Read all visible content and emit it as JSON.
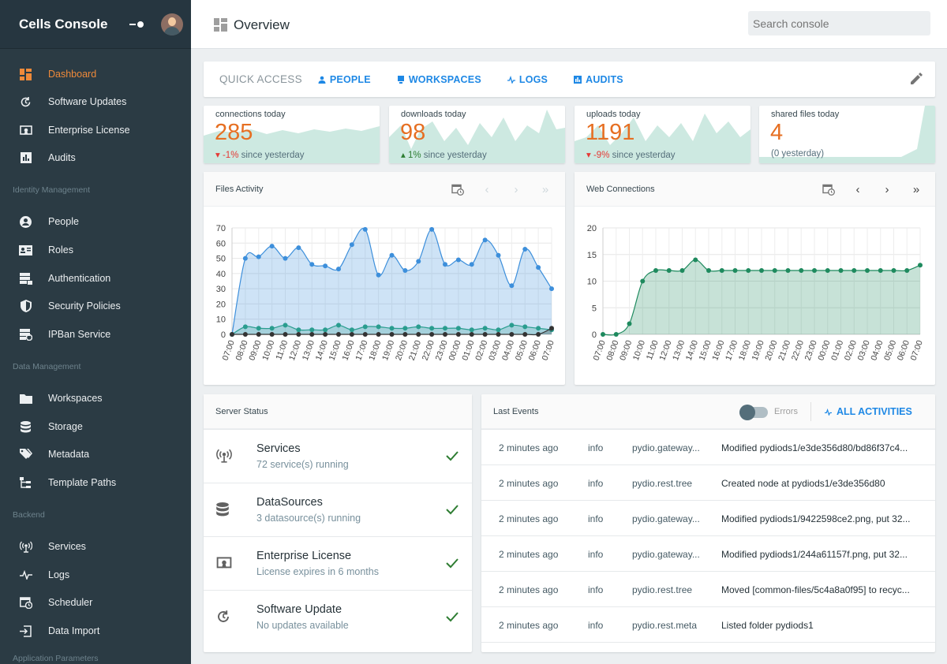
{
  "app": {
    "title": "Cells Console"
  },
  "sidebar": {
    "items": [
      {
        "label": "Dashboard",
        "icon": "dashboard-icon"
      },
      {
        "label": "Software Updates",
        "icon": "update-icon"
      },
      {
        "label": "Enterprise License",
        "icon": "license-icon"
      },
      {
        "label": "Audits",
        "icon": "chart-icon"
      },
      {
        "label": "People",
        "icon": "person-icon"
      },
      {
        "label": "Roles",
        "icon": "id-card-icon"
      },
      {
        "label": "Authentication",
        "icon": "server-lock-icon"
      },
      {
        "label": "Security Policies",
        "icon": "shield-icon"
      },
      {
        "label": "IPBan Service",
        "icon": "server-block-icon"
      },
      {
        "label": "Workspaces",
        "icon": "folder-icon"
      },
      {
        "label": "Storage",
        "icon": "database-icon"
      },
      {
        "label": "Metadata",
        "icon": "tags-icon"
      },
      {
        "label": "Template Paths",
        "icon": "file-tree-icon"
      },
      {
        "label": "Services",
        "icon": "antenna-icon"
      },
      {
        "label": "Logs",
        "icon": "pulse-icon"
      },
      {
        "label": "Scheduler",
        "icon": "calendar-clock-icon"
      },
      {
        "label": "Data Import",
        "icon": "import-icon"
      }
    ],
    "sections": [
      "Identity Management",
      "Data Management",
      "Backend",
      "Application Parameters"
    ]
  },
  "topbar": {
    "title": "Overview",
    "search_placeholder": "Search console"
  },
  "quick_access": {
    "label": "QUICK ACCESS",
    "links": [
      "PEOPLE",
      "WORKSPACES",
      "LOGS",
      "AUDITS"
    ]
  },
  "stats": [
    {
      "label": "connections today",
      "value": "285",
      "delta": "-1%",
      "delta_dir": "down",
      "suffix": "since yesterday"
    },
    {
      "label": "downloads today",
      "value": "98",
      "delta": "1%",
      "delta_dir": "up",
      "suffix": "since yesterday"
    },
    {
      "label": "uploads today",
      "value": "1191",
      "delta": "-9%",
      "delta_dir": "down",
      "suffix": "since yesterday"
    },
    {
      "label": "shared files today",
      "value": "4",
      "delta": "",
      "delta_dir": "none",
      "suffix": "(0 yesterday)"
    }
  ],
  "files_activity": {
    "title": "Files Activity"
  },
  "web_connections": {
    "title": "Web Connections"
  },
  "chart_data": [
    {
      "type": "area",
      "title": "Files Activity",
      "x": [
        "07:00",
        "08:00",
        "09:00",
        "10:00",
        "11:00",
        "12:00",
        "13:00",
        "14:00",
        "15:00",
        "16:00",
        "17:00",
        "18:00",
        "19:00",
        "20:00",
        "21:00",
        "22:00",
        "23:00",
        "00:00",
        "01:00",
        "02:00",
        "03:00",
        "04:00",
        "05:00",
        "06:00",
        "07:00"
      ],
      "ylim": [
        0,
        70
      ],
      "yticks": [
        0,
        10,
        20,
        30,
        40,
        50,
        60,
        70
      ],
      "grid": true,
      "series": [
        {
          "values": [
            0,
            50,
            51,
            58,
            50,
            57,
            46,
            45,
            43,
            59,
            69,
            39,
            52,
            42,
            48,
            69,
            46,
            49,
            46,
            62,
            52,
            32,
            56,
            44,
            30
          ],
          "color": "#3d8fdb"
        },
        {
          "values": [
            0,
            5,
            4,
            4,
            6,
            3,
            3,
            3,
            6,
            3,
            5,
            5,
            4,
            4,
            5,
            4,
            4,
            4,
            3,
            4,
            3,
            6,
            5,
            4,
            3
          ],
          "color": "#2a9d8f"
        },
        {
          "values": [
            0,
            0,
            0,
            0,
            0,
            0,
            0,
            0,
            0,
            0,
            0,
            0,
            0,
            0,
            0,
            0,
            0,
            0,
            0,
            0,
            0,
            0,
            0,
            0,
            4
          ],
          "color": "#333333"
        }
      ]
    },
    {
      "type": "area",
      "title": "Web Connections",
      "x": [
        "07:00",
        "08:00",
        "09:00",
        "10:00",
        "11:00",
        "12:00",
        "13:00",
        "14:00",
        "15:00",
        "16:00",
        "17:00",
        "18:00",
        "19:00",
        "20:00",
        "21:00",
        "22:00",
        "23:00",
        "00:00",
        "01:00",
        "02:00",
        "03:00",
        "04:00",
        "05:00",
        "06:00",
        "07:00"
      ],
      "ylim": [
        0,
        20
      ],
      "yticks": [
        0,
        5,
        10,
        15,
        20
      ],
      "grid": true,
      "series": [
        {
          "values": [
            0,
            0,
            2,
            10,
            12,
            12,
            12,
            14,
            12,
            12,
            12,
            12,
            12,
            12,
            12,
            12,
            12,
            12,
            12,
            12,
            12,
            12,
            12,
            12,
            13
          ],
          "color": "#1e8a5e"
        }
      ]
    }
  ],
  "server_status": {
    "title": "Server Status",
    "rows": [
      {
        "title": "Services",
        "subtitle": "72 service(s) running"
      },
      {
        "title": "DataSources",
        "subtitle": "3 datasource(s) running"
      },
      {
        "title": "Enterprise License",
        "subtitle": "License expires in 6 months"
      },
      {
        "title": "Software Update",
        "subtitle": "No updates available"
      }
    ]
  },
  "last_events": {
    "title": "Last Events",
    "errors_label": "Errors",
    "all_label": "ALL ACTIVITIES",
    "rows": [
      {
        "time": "2 minutes ago",
        "level": "info",
        "service": "pydio.gateway...",
        "msg": "Modified pydiods1/e3de356d80/bd86f37c4..."
      },
      {
        "time": "2 minutes ago",
        "level": "info",
        "service": "pydio.rest.tree",
        "msg": "Created node at pydiods1/e3de356d80"
      },
      {
        "time": "2 minutes ago",
        "level": "info",
        "service": "pydio.gateway...",
        "msg": "Modified pydiods1/9422598ce2.png, put 32..."
      },
      {
        "time": "2 minutes ago",
        "level": "info",
        "service": "pydio.gateway...",
        "msg": "Modified pydiods1/244a61157f.png, put 32..."
      },
      {
        "time": "2 minutes ago",
        "level": "info",
        "service": "pydio.rest.tree",
        "msg": "Moved [common-files/5c4a8a0f95] to recyc..."
      },
      {
        "time": "2 minutes ago",
        "level": "info",
        "service": "pydio.rest.meta",
        "msg": "Listed folder pydiods1"
      }
    ]
  },
  "colors": {
    "accent": "#ef8a3a",
    "link": "#1e88e5",
    "sidebar": "#2b3b44",
    "check": "#2e7d32"
  }
}
